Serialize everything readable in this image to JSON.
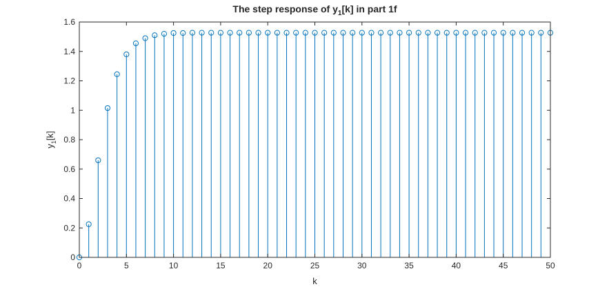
{
  "chart_data": {
    "type": "stem",
    "title": {
      "main": "The step response of y",
      "sub": "1",
      "rest": "[k] in part 1f"
    },
    "xlabel": "k",
    "ylabel": {
      "main": "y",
      "sub": "1",
      "rest": "[k]"
    },
    "xlim": [
      0,
      50
    ],
    "ylim": [
      0,
      1.6
    ],
    "xticks": [
      0,
      5,
      10,
      15,
      20,
      25,
      30,
      35,
      40,
      45,
      50
    ],
    "yticks": [
      0,
      0.2,
      0.4,
      0.6,
      0.8,
      1,
      1.2,
      1.4,
      1.6
    ],
    "grid": false,
    "series": [
      {
        "color": "#0072BD",
        "marker": "circle",
        "x": [
          0,
          1,
          2,
          3,
          4,
          5,
          6,
          7,
          8,
          9,
          10,
          11,
          12,
          13,
          14,
          15,
          16,
          17,
          18,
          19,
          20,
          21,
          22,
          23,
          24,
          25,
          26,
          27,
          28,
          29,
          30,
          31,
          32,
          33,
          34,
          35,
          36,
          37,
          38,
          39,
          40,
          41,
          42,
          43,
          44,
          45,
          46,
          47,
          48,
          49,
          50
        ],
        "y": [
          0,
          0.225,
          0.66,
          1.015,
          1.245,
          1.38,
          1.455,
          1.49,
          1.51,
          1.52,
          1.525,
          1.525,
          1.527,
          1.527,
          1.527,
          1.527,
          1.527,
          1.527,
          1.527,
          1.527,
          1.527,
          1.527,
          1.527,
          1.527,
          1.527,
          1.527,
          1.527,
          1.527,
          1.527,
          1.527,
          1.527,
          1.527,
          1.527,
          1.527,
          1.527,
          1.527,
          1.527,
          1.527,
          1.527,
          1.527,
          1.527,
          1.527,
          1.527,
          1.527,
          1.527,
          1.527,
          1.527,
          1.527,
          1.527,
          1.527,
          1.527
        ]
      }
    ]
  }
}
